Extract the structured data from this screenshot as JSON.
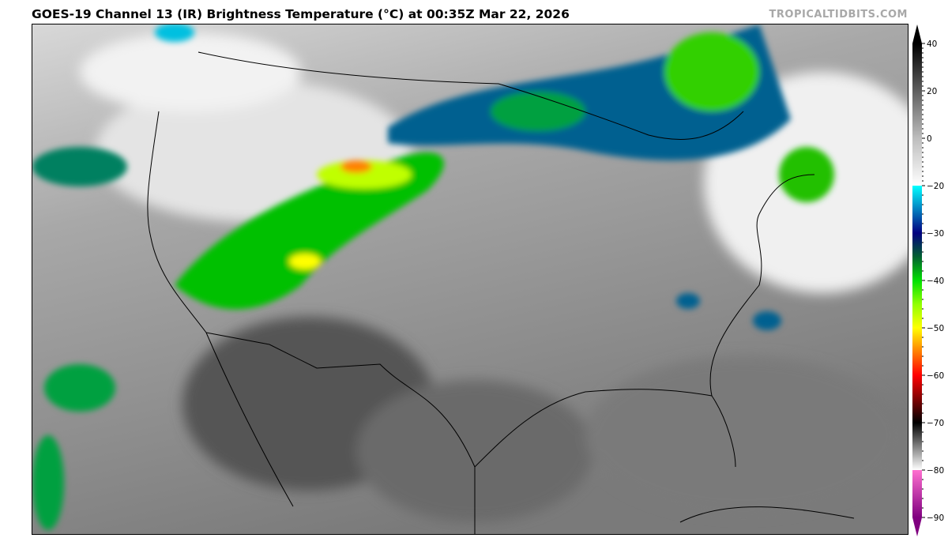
{
  "title": "GOES-19 Channel 13 (IR) Brightness Temperature (°C) at 00:35Z Mar 22, 2026",
  "credit": "TROPICALTIDBITS.COM",
  "colorbar": {
    "unit": "°C",
    "range": [
      -90,
      40
    ],
    "tick_labels": [
      "40",
      "20",
      "0",
      "−20",
      "−30",
      "−40",
      "−50",
      "−60",
      "−70",
      "−80",
      "−90"
    ],
    "tick_values": [
      40,
      20,
      0,
      -20,
      -30,
      -40,
      -50,
      -60,
      -70,
      -80,
      -90
    ],
    "color_stops": [
      {
        "value": 40,
        "color": "#000000"
      },
      {
        "value": 0,
        "color": "#bdbdbd"
      },
      {
        "value": -20,
        "color": "#ffffff"
      },
      {
        "value": -20.01,
        "color": "#00ffff"
      },
      {
        "value": -25,
        "color": "#0080c0"
      },
      {
        "value": -30,
        "color": "#000080"
      },
      {
        "value": -35,
        "color": "#006030"
      },
      {
        "value": -40,
        "color": "#00e000"
      },
      {
        "value": -45,
        "color": "#90ff00"
      },
      {
        "value": -50,
        "color": "#ffff00"
      },
      {
        "value": -55,
        "color": "#ff8000"
      },
      {
        "value": -60,
        "color": "#ff0000"
      },
      {
        "value": -65,
        "color": "#800000"
      },
      {
        "value": -70,
        "color": "#000000"
      },
      {
        "value": -75,
        "color": "#808080"
      },
      {
        "value": -80,
        "color": "#ffffff"
      },
      {
        "value": -80.01,
        "color": "#ff70d0"
      },
      {
        "value": -90,
        "color": "#800080"
      }
    ]
  }
}
